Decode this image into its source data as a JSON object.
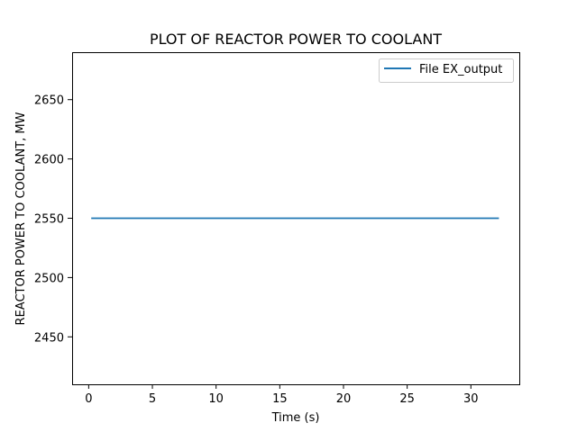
{
  "chart_data": {
    "type": "line",
    "title": "PLOT OF REACTOR POWER TO COOLANT",
    "xlabel": "Time (s)",
    "ylabel": "REACTOR POWER TO COOLANT, MW",
    "xlim": [
      -1.3,
      33.8
    ],
    "ylim": [
      2410,
      2690
    ],
    "xticks": [
      0,
      5,
      10,
      15,
      20,
      25,
      30
    ],
    "yticks": [
      2450,
      2500,
      2550,
      2600,
      2650
    ],
    "grid": false,
    "legend_position": "top-right",
    "series": [
      {
        "name": "File EX_output",
        "color": "#1f77b4",
        "x": [
          0.2,
          32.2
        ],
        "y": [
          2550,
          2550
        ]
      }
    ]
  }
}
